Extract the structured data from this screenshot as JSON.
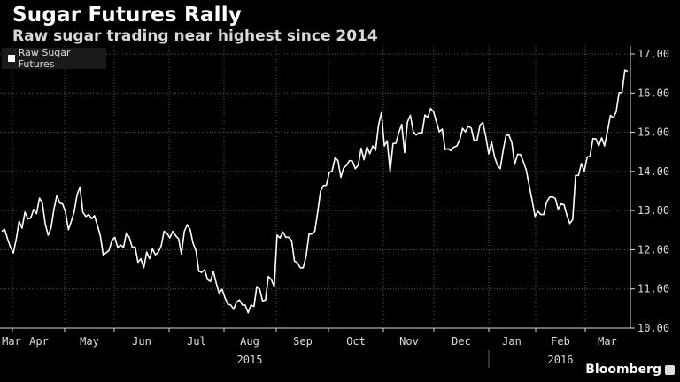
{
  "chart_data": {
    "type": "line",
    "title": "Sugar Futures Rally",
    "subtitle": "Raw sugar trading near highest since 2014",
    "legend": [
      "Raw Sugar Futures"
    ],
    "legend_position": "top-left",
    "ylim": [
      10,
      17
    ],
    "yticks": [
      "10.00",
      "11.00",
      "12.00",
      "13.00",
      "14.00",
      "15.00",
      "16.00",
      "17.00"
    ],
    "xticks": [
      "Mar",
      "Apr",
      "May",
      "Jun",
      "Jul",
      "Aug",
      "Sep",
      "Oct",
      "Nov",
      "Dec",
      "Jan",
      "Feb",
      "Mar"
    ],
    "year_labels": [
      "2015",
      "2016"
    ],
    "grid": true,
    "series": [
      {
        "name": "Raw Sugar Futures",
        "values": [
          12.47,
          12.52,
          12.28,
          12.06,
          11.92,
          12.28,
          12.73,
          12.55,
          12.96,
          12.79,
          12.81,
          13.03,
          12.92,
          13.32,
          13.2,
          12.66,
          12.37,
          12.55,
          13.03,
          13.39,
          13.19,
          13.17,
          12.96,
          12.51,
          12.73,
          12.97,
          13.41,
          13.6,
          12.96,
          12.85,
          12.9,
          12.79,
          12.87,
          12.62,
          12.36,
          11.87,
          11.92,
          11.98,
          12.24,
          12.32,
          12.06,
          12.12,
          12.06,
          12.43,
          12.32,
          12.06,
          12.07,
          11.68,
          11.77,
          11.54,
          11.94,
          11.77,
          12.02,
          11.87,
          11.94,
          12.09,
          12.47,
          12.42,
          12.3,
          12.47,
          12.36,
          12.28,
          11.89,
          12.47,
          12.64,
          12.51,
          12.17,
          11.98,
          11.45,
          11.42,
          11.49,
          11.24,
          11.19,
          11.45,
          11.15,
          10.89,
          10.99,
          10.78,
          10.61,
          10.59,
          10.48,
          10.66,
          10.72,
          10.59,
          10.59,
          10.39,
          10.59,
          10.55,
          11.06,
          10.99,
          10.69,
          10.72,
          11.32,
          11.24,
          11.06,
          12.37,
          12.3,
          12.45,
          12.32,
          12.32,
          12.24,
          11.71,
          11.67,
          11.54,
          11.54,
          11.83,
          12.4,
          12.4,
          12.47,
          12.96,
          13.49,
          13.64,
          13.65,
          13.97,
          14.01,
          14.35,
          14.28,
          13.85,
          14.09,
          14.16,
          14.28,
          14.26,
          14.07,
          14.16,
          14.59,
          14.3,
          14.63,
          14.45,
          14.65,
          14.54,
          15.18,
          15.5,
          14.65,
          14.78,
          14.0,
          14.71,
          14.72,
          14.99,
          15.2,
          14.48,
          15.26,
          15.43,
          15.01,
          14.93,
          14.99,
          14.96,
          15.44,
          15.38,
          15.61,
          15.52,
          15.26,
          15.01,
          15.08,
          14.56,
          14.58,
          14.53,
          14.62,
          14.65,
          14.8,
          15.1,
          15.01,
          15.16,
          15.1,
          14.78,
          14.8,
          15.18,
          15.25,
          14.9,
          14.45,
          14.75,
          14.39,
          14.16,
          14.07,
          14.54,
          14.92,
          14.93,
          14.73,
          14.18,
          14.44,
          14.43,
          14.24,
          14.03,
          13.64,
          13.26,
          12.85,
          12.98,
          12.9,
          12.9,
          13.22,
          13.34,
          13.35,
          13.31,
          13.03,
          13.17,
          13.15,
          12.88,
          12.67,
          12.77,
          13.9,
          13.9,
          14.2,
          14.01,
          14.37,
          14.39,
          14.84,
          14.83,
          14.65,
          14.86,
          14.65,
          15.03,
          15.43,
          15.37,
          15.52,
          16.01,
          16.01,
          16.59,
          16.56
        ]
      }
    ]
  },
  "source": "Bloomberg",
  "colors": {
    "background": "#000000",
    "line": "#ffffff",
    "grid": "#555555"
  }
}
